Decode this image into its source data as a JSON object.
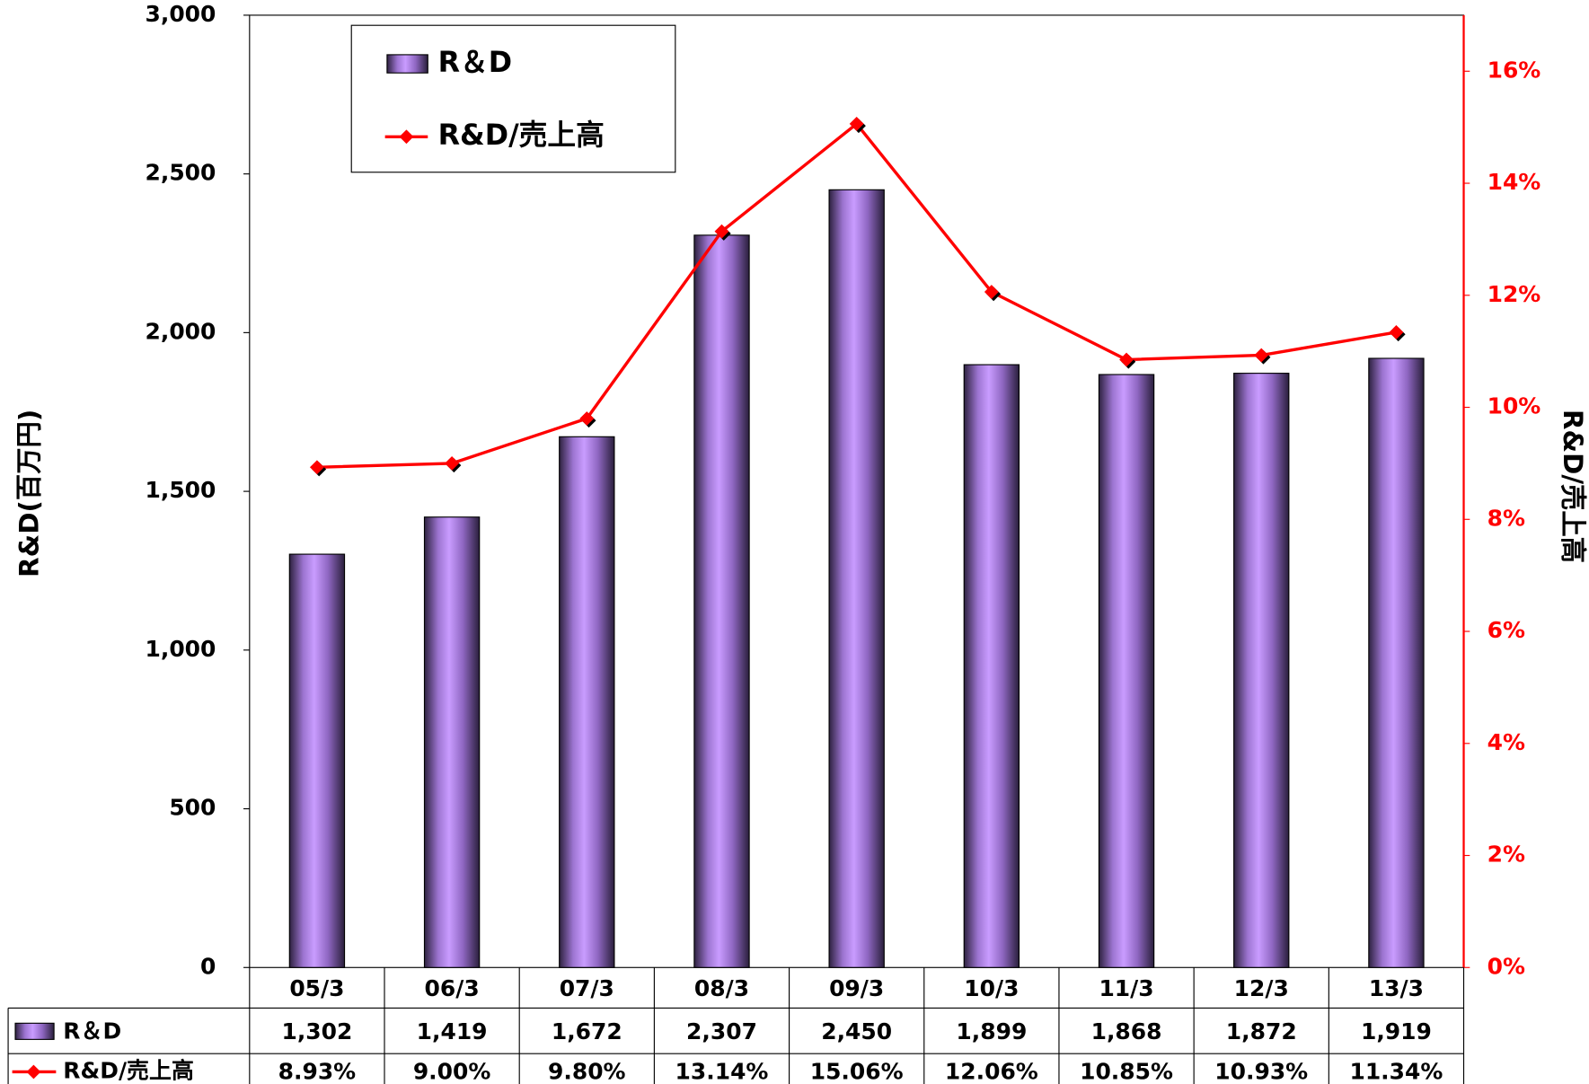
{
  "chart_data": {
    "type": "bar_line",
    "y_label": "R&D(百万円)",
    "y2_label": "R&D/売上高",
    "categories": [
      "05/3",
      "06/3",
      "07/3",
      "08/3",
      "09/3",
      "10/3",
      "11/3",
      "12/3",
      "13/3"
    ],
    "series": [
      {
        "name": "R＆D",
        "type": "bar",
        "color": "#b98af0",
        "values": [
          1302,
          1419,
          1672,
          2307,
          2450,
          1899,
          1868,
          1872,
          1919
        ],
        "value_labels": [
          "1,302",
          "1,419",
          "1,672",
          "2,307",
          "2,450",
          "1,899",
          "1,868",
          "1,872",
          "1,919"
        ]
      },
      {
        "name": "R&D/売上高",
        "type": "line",
        "axis": "y2",
        "color": "#ff0000",
        "values": [
          8.93,
          9.0,
          9.8,
          13.14,
          15.06,
          12.06,
          10.85,
          10.93,
          11.34
        ],
        "value_labels": [
          "8.93%",
          "9.00%",
          "9.80%",
          "13.14%",
          "15.06%",
          "12.06%",
          "10.85%",
          "10.93%",
          "11.34%"
        ]
      }
    ],
    "ylim": [
      0,
      3000
    ],
    "yticks": [
      0,
      500,
      {
        "value": 1000,
        "label": "1,000"
      },
      {
        "value": 1500,
        "label": "1,500"
      },
      {
        "value": 2000,
        "label": "2,000"
      },
      {
        "value": 2500,
        "label": "2,500"
      },
      {
        "value": 3000,
        "label": "3,000"
      }
    ],
    "y2lim": [
      0,
      17
    ],
    "y2ticks": [
      {
        "value": 0,
        "label": "0%"
      },
      {
        "value": 2,
        "label": "2%"
      },
      {
        "value": 4,
        "label": "4%"
      },
      {
        "value": 6,
        "label": "6%"
      },
      {
        "value": 8,
        "label": "8%"
      },
      {
        "value": 10,
        "label": "10%"
      },
      {
        "value": 12,
        "label": "12%"
      },
      {
        "value": 14,
        "label": "14%"
      },
      {
        "value": 16,
        "label": "16%"
      }
    ],
    "legend": "top-left",
    "data_table": true
  }
}
